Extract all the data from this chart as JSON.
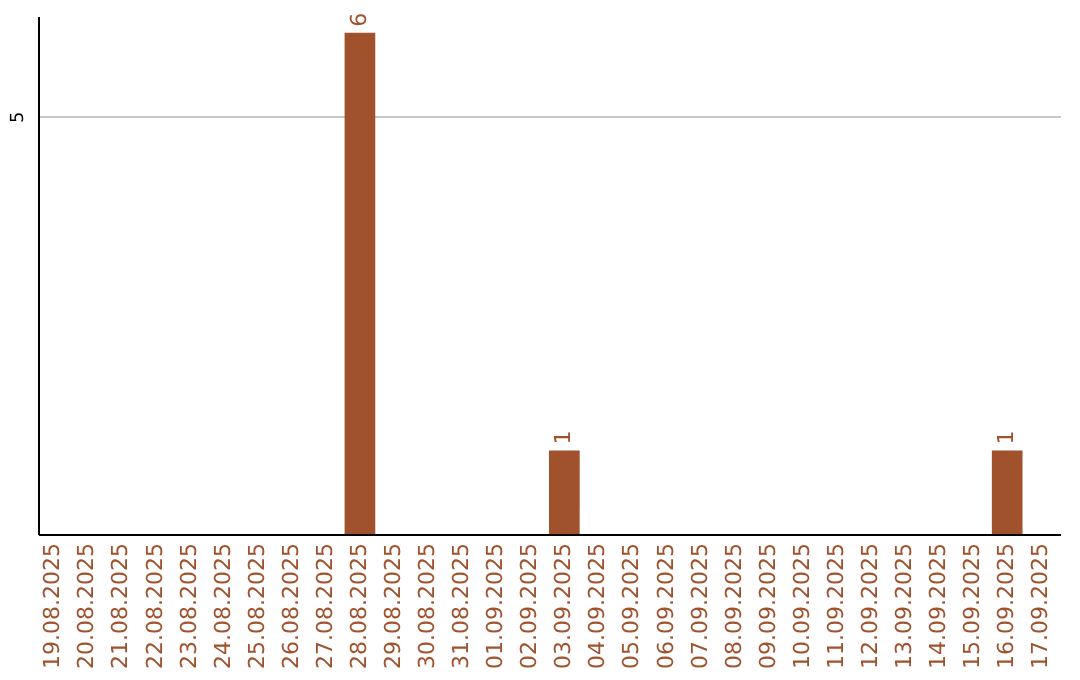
{
  "chart_data": {
    "type": "bar",
    "categories": [
      "19.08.2025",
      "20.08.2025",
      "21.08.2025",
      "22.08.2025",
      "23.08.2025",
      "24.08.2025",
      "25.08.2025",
      "26.08.2025",
      "27.08.2025",
      "28.08.2025",
      "29.08.2025",
      "30.08.2025",
      "31.08.2025",
      "01.09.2025",
      "02.09.2025",
      "03.09.2025",
      "04.09.2025",
      "05.09.2025",
      "06.09.2025",
      "07.09.2025",
      "08.09.2025",
      "09.09.2025",
      "10.09.2025",
      "11.09.2025",
      "12.09.2025",
      "13.09.2025",
      "14.09.2025",
      "15.09.2025",
      "16.09.2025",
      "17.09.2025"
    ],
    "values": [
      0,
      0,
      0,
      0,
      0,
      0,
      0,
      0,
      0,
      6,
      0,
      0,
      0,
      0,
      0,
      1,
      0,
      0,
      0,
      0,
      0,
      0,
      0,
      0,
      0,
      0,
      0,
      0,
      1,
      0
    ],
    "value_labels": [
      null,
      null,
      null,
      null,
      null,
      null,
      null,
      null,
      null,
      "6",
      null,
      null,
      null,
      null,
      null,
      "1",
      null,
      null,
      null,
      null,
      null,
      null,
      null,
      null,
      null,
      null,
      null,
      null,
      "1",
      null
    ],
    "color": "#a0522d",
    "ylim": [
      0,
      6.2
    ],
    "yticks": [
      5
    ],
    "grid": "y"
  }
}
